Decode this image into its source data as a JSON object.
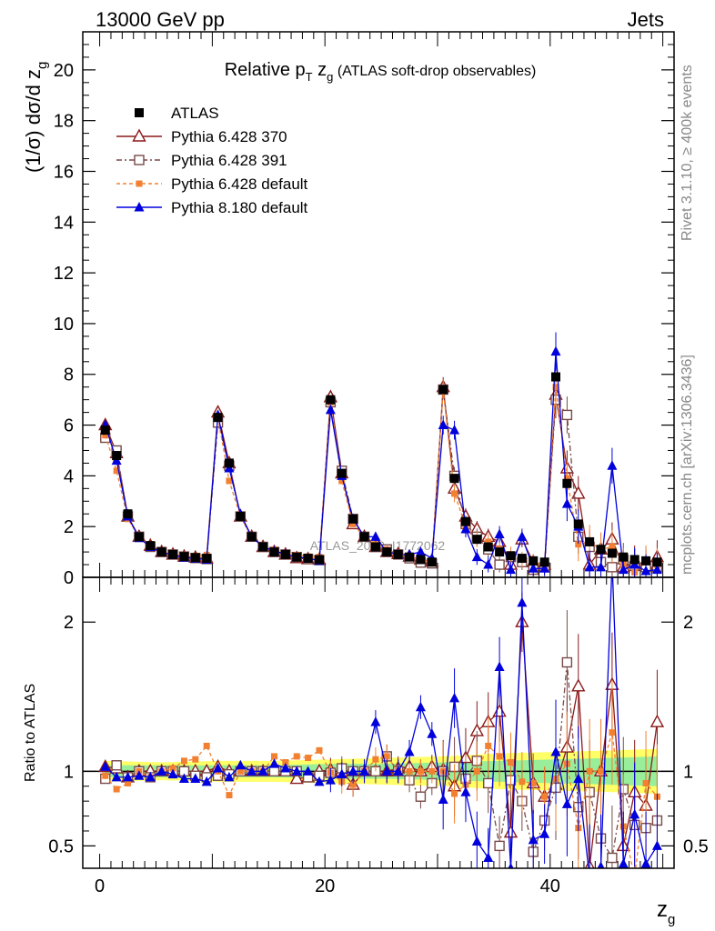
{
  "header": {
    "left": "13000 GeV pp",
    "right": "Jets"
  },
  "side_labels": {
    "rivet": "Rivet 3.1.10, ≥ 400k events",
    "mcplots": "mcplots.cern.ch [arXiv:1306.3436]"
  },
  "chart_data": [
    {
      "type": "scatter",
      "title_main": "Relative p",
      "title_sub1": "T",
      "title_mid": " z",
      "title_sub2": "g",
      "title_tail": " (ATLAS soft-drop observables)",
      "watermark": "ATLAS_2019_I1772062",
      "ylabel": "(1/σ) dσ/d z",
      "ylabel_sub": "g",
      "xlabel": "z",
      "xlabel_sub": "g",
      "xlim": [
        -1.5,
        51
      ],
      "ylim": [
        0,
        21.5
      ],
      "y_ticks": [
        0,
        2,
        4,
        6,
        8,
        10,
        12,
        14,
        16,
        18,
        20
      ],
      "y_tick_labels": [
        "0",
        "2",
        "4",
        "6",
        "8",
        "10",
        "12",
        "14",
        "16",
        "18",
        "20"
      ],
      "x_ticks": [
        0,
        20,
        40
      ],
      "x_tick_labels": [
        "0",
        "20",
        "40"
      ],
      "legend_position": "top-left",
      "series": [
        {
          "name": "ATLAS",
          "color": "#000000",
          "marker": "square-filled",
          "x": [
            0.5,
            1.5,
            2.5,
            3.5,
            4.5,
            5.5,
            6.5,
            7.5,
            8.5,
            9.5,
            10.5,
            11.5,
            12.5,
            13.5,
            14.5,
            15.5,
            16.5,
            17.5,
            18.5,
            19.5,
            20.5,
            21.5,
            22.5,
            23.5,
            24.5,
            25.5,
            26.5,
            27.5,
            28.5,
            29.5,
            30.5,
            31.5,
            32.5,
            33.5,
            34.5,
            35.5,
            36.5,
            37.5,
            38.5,
            39.5,
            40.5,
            41.5,
            42.5,
            43.5,
            44.5,
            45.5,
            46.5,
            47.5,
            48.5,
            49.5
          ],
          "y": [
            5.8,
            4.8,
            2.5,
            1.6,
            1.25,
            1.0,
            0.9,
            0.82,
            0.78,
            0.75,
            6.3,
            4.5,
            2.4,
            1.6,
            1.2,
            1.0,
            0.9,
            0.8,
            0.75,
            0.7,
            7.0,
            4.1,
            2.3,
            1.6,
            1.2,
            1.0,
            0.9,
            0.8,
            0.7,
            0.6,
            7.4,
            3.9,
            2.2,
            1.5,
            1.2,
            1.0,
            0.85,
            0.75,
            0.65,
            0.6,
            7.9,
            3.7,
            2.1,
            1.4,
            1.1,
            0.95,
            0.8,
            0.7,
            0.65,
            0.6
          ]
        },
        {
          "name": "Pythia 6.428 370",
          "color": "#8b1a1a",
          "marker": "triangle-open",
          "dash": "",
          "x": [
            0.5,
            1.5,
            2.5,
            3.5,
            4.5,
            5.5,
            6.5,
            7.5,
            8.5,
            9.5,
            10.5,
            11.5,
            12.5,
            13.5,
            14.5,
            15.5,
            16.5,
            17.5,
            18.5,
            19.5,
            20.5,
            21.5,
            22.5,
            23.5,
            24.5,
            25.5,
            26.5,
            27.5,
            28.5,
            29.5,
            30.5,
            31.5,
            32.5,
            33.5,
            34.5,
            35.5,
            36.5,
            37.5,
            38.5,
            39.5,
            40.5,
            41.5,
            42.5,
            43.5,
            44.5,
            45.5,
            46.5,
            47.5,
            48.5,
            49.5
          ],
          "y": [
            6.0,
            4.9,
            2.4,
            1.6,
            1.25,
            1.0,
            0.9,
            0.82,
            0.78,
            0.75,
            6.5,
            4.5,
            2.4,
            1.6,
            1.2,
            1.0,
            0.9,
            0.76,
            0.72,
            0.7,
            7.1,
            4.1,
            2.1,
            1.6,
            1.2,
            1.0,
            0.92,
            0.82,
            0.7,
            0.62,
            7.5,
            3.5,
            2.4,
            1.9,
            1.6,
            1.4,
            0.5,
            1.5,
            0.6,
            0.5,
            7.2,
            4.3,
            3.3,
            0.5,
            1.1,
            1.5,
            0.4,
            0.6,
            0.5,
            0.8
          ]
        },
        {
          "name": "Pythia 6.428 391",
          "color": "#7a4a4a",
          "marker": "square-open",
          "dash": "6,3,2,3",
          "x": [
            0.5,
            1.5,
            2.5,
            3.5,
            4.5,
            5.5,
            6.5,
            7.5,
            8.5,
            9.5,
            10.5,
            11.5,
            12.5,
            13.5,
            14.5,
            15.5,
            16.5,
            17.5,
            18.5,
            19.5,
            20.5,
            21.5,
            22.5,
            23.5,
            24.5,
            25.5,
            26.5,
            27.5,
            28.5,
            29.5,
            30.5,
            31.5,
            32.5,
            33.5,
            34.5,
            35.5,
            36.5,
            37.5,
            38.5,
            39.5,
            40.5,
            41.5,
            42.5,
            43.5,
            44.5,
            45.5,
            46.5,
            47.5,
            48.5,
            49.5
          ],
          "y": [
            5.5,
            5.0,
            2.4,
            1.6,
            1.2,
            1.0,
            0.9,
            0.82,
            0.76,
            0.72,
            6.1,
            4.4,
            2.4,
            1.6,
            1.2,
            1.0,
            0.9,
            0.8,
            0.72,
            0.68,
            6.9,
            4.2,
            2.3,
            1.6,
            1.2,
            1.1,
            0.9,
            0.75,
            0.58,
            0.55,
            7.4,
            4.0,
            2.1,
            1.6,
            1.1,
            0.5,
            0.8,
            0.6,
            0.3,
            0.4,
            7.0,
            6.4,
            1.6,
            1.2,
            0.6,
            0.4,
            0.7,
            0.45,
            0.4,
            0.4
          ]
        },
        {
          "name": "Pythia 6.428 default",
          "color": "#f28030",
          "marker": "square-filled-small",
          "dash": "4,3",
          "x": [
            0.5,
            1.5,
            2.5,
            3.5,
            4.5,
            5.5,
            6.5,
            7.5,
            8.5,
            9.5,
            10.5,
            11.5,
            12.5,
            13.5,
            14.5,
            15.5,
            16.5,
            17.5,
            18.5,
            19.5,
            20.5,
            21.5,
            22.5,
            23.5,
            24.5,
            25.5,
            26.5,
            27.5,
            28.5,
            29.5,
            30.5,
            31.5,
            32.5,
            33.5,
            34.5,
            35.5,
            36.5,
            37.5,
            38.5,
            39.5,
            40.5,
            41.5,
            42.5,
            43.5,
            44.5,
            45.5,
            46.5,
            47.5,
            48.5,
            49.5
          ],
          "y": [
            5.6,
            4.2,
            2.3,
            1.6,
            1.2,
            1.0,
            0.92,
            0.88,
            0.84,
            0.88,
            6.3,
            3.8,
            2.4,
            1.6,
            1.2,
            1.1,
            0.95,
            0.88,
            0.82,
            0.8,
            6.9,
            3.8,
            2.1,
            1.6,
            1.3,
            1.1,
            0.9,
            0.8,
            0.7,
            0.6,
            7.4,
            3.3,
            2.0,
            1.5,
            1.4,
            1.1,
            0.9,
            0.7,
            0.6,
            0.5,
            7.5,
            3.9,
            1.3,
            1.4,
            1.1,
            1.2,
            0.5,
            0.2,
            0.6,
            0.5
          ]
        },
        {
          "name": "Pythia 8.180 default",
          "color": "#0000dd",
          "marker": "triangle-filled",
          "dash": "",
          "x": [
            0.5,
            1.5,
            2.5,
            3.5,
            4.5,
            5.5,
            6.5,
            7.5,
            8.5,
            9.5,
            10.5,
            11.5,
            12.5,
            13.5,
            14.5,
            15.5,
            16.5,
            17.5,
            18.5,
            19.5,
            20.5,
            21.5,
            22.5,
            23.5,
            24.5,
            25.5,
            26.5,
            27.5,
            28.5,
            29.5,
            30.5,
            31.5,
            32.5,
            33.5,
            34.5,
            35.5,
            36.5,
            37.5,
            38.5,
            39.5,
            40.5,
            41.5,
            42.5,
            43.5,
            44.5,
            45.5,
            46.5,
            47.5,
            48.5,
            49.5
          ],
          "y": [
            6.0,
            4.6,
            2.4,
            1.55,
            1.2,
            1.0,
            0.88,
            0.78,
            0.74,
            0.7,
            6.4,
            4.3,
            2.5,
            1.6,
            1.2,
            1.05,
            0.92,
            0.8,
            0.75,
            0.65,
            6.6,
            4.0,
            2.3,
            1.6,
            1.6,
            1.0,
            0.9,
            0.9,
            1.0,
            0.75,
            6.0,
            5.8,
            1.9,
            0.8,
            0.5,
            1.7,
            0.3,
            1.6,
            0.35,
            0.35,
            8.9,
            2.9,
            2.0,
            0.4,
            0.4,
            4.4,
            0.3,
            0.5,
            0.25,
            0.3
          ]
        }
      ]
    },
    {
      "type": "scatter",
      "ylabel": "Ratio to ATLAS",
      "ylim": [
        0.35,
        2.3
      ],
      "y_ticks": [
        0.5,
        1,
        2
      ],
      "y_tick_labels": [
        "0.5",
        "1",
        "2"
      ],
      "reference_line": 1,
      "band_colors": {
        "inner": "#99ee99",
        "outer": "#ffff66"
      },
      "band_x": [
        0.5,
        5.5,
        10.5,
        15.5,
        20.5,
        25.5,
        30.5,
        35.5,
        40.5,
        45.5,
        49.5
      ],
      "band_inner": [
        0.04,
        0.04,
        0.04,
        0.04,
        0.05,
        0.05,
        0.06,
        0.07,
        0.08,
        0.09,
        0.1
      ],
      "band_outer": [
        0.07,
        0.06,
        0.07,
        0.07,
        0.08,
        0.09,
        0.1,
        0.12,
        0.13,
        0.14,
        0.15
      ],
      "series": [
        {
          "name": "Pythia 6.428 370",
          "ratio": [
            1.03,
            1.02,
            0.96,
            1.0,
            1.0,
            1.0,
            1.0,
            1.0,
            1.0,
            1.0,
            1.03,
            1.0,
            1.0,
            1.0,
            1.0,
            1.0,
            1.0,
            0.95,
            0.96,
            1.0,
            1.01,
            1.0,
            0.91,
            1.0,
            1.0,
            1.0,
            1.02,
            1.03,
            1.0,
            1.03,
            1.01,
            0.9,
            1.09,
            1.27,
            1.33,
            1.4,
            0.59,
            2.0,
            0.92,
            0.83,
            0.91,
            1.16,
            1.57,
            0.36,
            1.0,
            1.58,
            0.5,
            0.86,
            0.77,
            1.33
          ]
        },
        {
          "name": "Pythia 6.428 391",
          "ratio": [
            0.95,
            1.04,
            0.96,
            1.0,
            0.96,
            1.0,
            1.0,
            1.0,
            0.97,
            0.96,
            0.97,
            0.98,
            1.0,
            1.0,
            1.0,
            1.0,
            1.0,
            1.0,
            0.96,
            0.97,
            0.99,
            1.02,
            1.0,
            1.0,
            1.0,
            1.1,
            1.0,
            0.94,
            0.83,
            0.92,
            1.0,
            1.03,
            0.95,
            1.07,
            0.92,
            0.5,
            0.94,
            0.8,
            0.46,
            0.67,
            0.89,
            1.73,
            0.76,
            0.86,
            0.55,
            0.42,
            0.88,
            0.64,
            0.62,
            0.67
          ]
        },
        {
          "name": "Pythia 6.428 default",
          "ratio": [
            0.97,
            0.88,
            0.92,
            1.0,
            0.96,
            1.0,
            1.02,
            1.07,
            1.08,
            1.17,
            1.0,
            0.84,
            1.0,
            1.0,
            1.0,
            1.1,
            1.06,
            1.1,
            1.09,
            1.14,
            0.99,
            0.93,
            0.91,
            1.0,
            1.08,
            1.1,
            1.0,
            1.0,
            1.0,
            1.0,
            1.0,
            0.85,
            0.91,
            1.0,
            1.17,
            1.1,
            1.06,
            0.93,
            0.92,
            0.83,
            0.95,
            1.05,
            0.62,
            1.0,
            1.0,
            1.26,
            0.63,
            0.29,
            0.92,
            0.83
          ]
        },
        {
          "name": "Pythia 8.180 default",
          "ratio": [
            1.03,
            0.96,
            0.96,
            0.97,
            0.96,
            1.0,
            0.98,
            0.95,
            0.95,
            0.93,
            1.02,
            0.96,
            1.04,
            1.0,
            1.0,
            1.05,
            1.02,
            1.0,
            1.0,
            0.93,
            0.94,
            0.98,
            1.0,
            1.0,
            1.33,
            1.0,
            1.0,
            1.13,
            1.43,
            1.25,
            0.81,
            1.49,
            0.86,
            0.53,
            0.42,
            1.7,
            0.35,
            2.13,
            0.54,
            0.58,
            1.13,
            0.78,
            0.95,
            0.29,
            0.36,
            4.6,
            0.38,
            0.71,
            0.38,
            0.5
          ]
        }
      ]
    }
  ]
}
